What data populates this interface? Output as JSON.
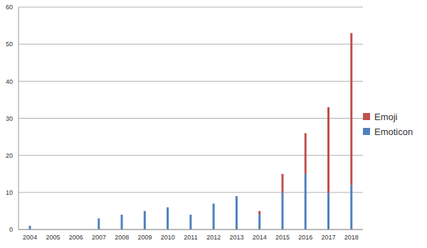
{
  "chart_data": {
    "type": "bar",
    "categories": [
      "2004",
      "2005",
      "2006",
      "2007",
      "2008",
      "2009",
      "2010",
      "2011",
      "2012",
      "2013",
      "2014",
      "2015",
      "2016",
      "2017",
      "2018"
    ],
    "series": [
      {
        "name": "Emoticon",
        "color": "#4f81bd",
        "values": [
          1,
          0,
          0,
          3,
          4,
          5,
          6,
          4,
          7,
          9,
          4,
          10,
          15,
          10,
          12
        ]
      },
      {
        "name": "Emoji",
        "color": "#c0504d",
        "values": [
          0,
          0,
          0,
          0,
          0,
          0,
          0,
          0,
          0,
          0,
          1,
          5,
          11,
          23,
          41
        ]
      }
    ],
    "ylim": [
      0,
      60
    ],
    "yticks": [
      0,
      10,
      20,
      30,
      40,
      50,
      60
    ],
    "grid": true,
    "stacked": true,
    "legend": "right"
  }
}
